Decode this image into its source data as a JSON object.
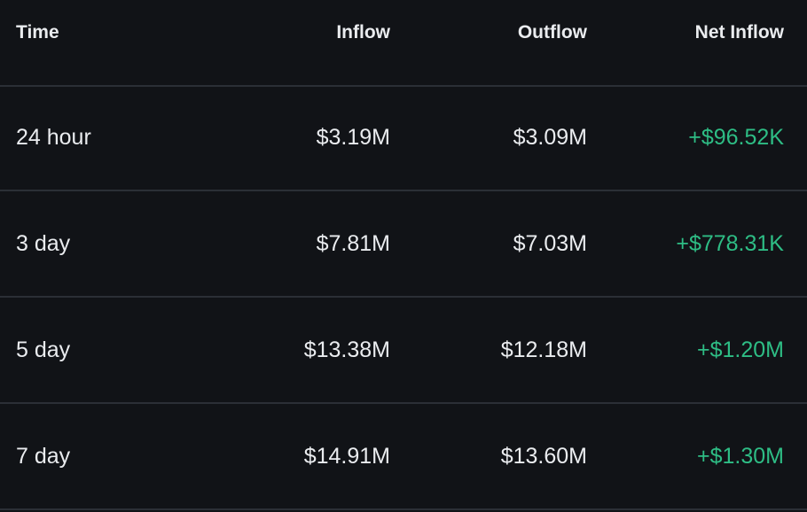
{
  "table": {
    "header": [
      "Time",
      "Inflow",
      "Outflow",
      "Net Inflow"
    ],
    "rows": [
      [
        "24 hour",
        "$3.19M",
        "$3.09M",
        "+$96.52K"
      ],
      [
        "3 day",
        "$7.81M",
        "$7.03M",
        "+$778.31K"
      ],
      [
        "5 day",
        "$13.38M",
        "$12.18M",
        "+$1.20M"
      ],
      [
        "7 day",
        "$14.91M",
        "$13.60M",
        "+$1.30M"
      ]
    ]
  }
}
